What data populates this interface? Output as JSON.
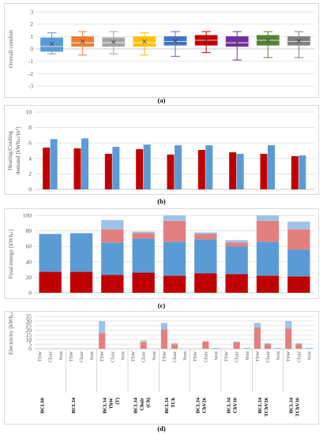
{
  "captions": [
    "(a)",
    "(b)",
    "(c)",
    "(d)"
  ],
  "chart_data": [
    {
      "type": "box",
      "ylabel": "Overall comfort",
      "ylim": [
        -3,
        3
      ],
      "yticks": [
        3,
        2,
        1,
        0,
        -1,
        -2,
        -3
      ],
      "grid": true,
      "categories": [
        "BCL00",
        "BCL34",
        "BCL34 ThW (T)",
        "BCL34 Chair (Ch)",
        "BCL34 TCh",
        "BCL34 ChV26",
        "BCL34 ChV30",
        "BCL34 TChV26",
        "BCL34 TChV30"
      ],
      "colors": [
        "#5b9bd5",
        "#ed7d31",
        "#a5a5a5",
        "#ffc000",
        "#4472c4",
        "#c00000",
        "#7030a0",
        "#548235",
        "#7f7f7f"
      ],
      "boxes": [
        {
          "min": -0.4,
          "q1": -0.2,
          "median": 0.2,
          "mean": 0.4,
          "q3": 0.9,
          "max": 1.3
        },
        {
          "min": -0.5,
          "q1": 0.2,
          "median": 0.5,
          "mean": 0.6,
          "q3": 1.0,
          "max": 1.4
        },
        {
          "min": -0.4,
          "q1": 0.2,
          "median": 0.5,
          "mean": 0.55,
          "q3": 0.9,
          "max": 1.4
        },
        {
          "min": -0.5,
          "q1": 0.2,
          "median": 0.5,
          "mean": 0.6,
          "q3": 1.0,
          "max": 1.3
        },
        {
          "min": -0.6,
          "q1": 0.3,
          "median": 0.6,
          "mean": 0.65,
          "q3": 1.0,
          "max": 1.4
        },
        {
          "min": -0.3,
          "q1": 0.3,
          "median": 0.7,
          "mean": 0.7,
          "q3": 1.1,
          "max": 1.4
        },
        {
          "min": -0.9,
          "q1": 0.2,
          "median": 0.5,
          "mean": 0.5,
          "q3": 1.0,
          "max": 1.4
        },
        {
          "min": -0.7,
          "q1": 0.3,
          "median": 0.7,
          "mean": 0.7,
          "q3": 1.1,
          "max": 1.4
        },
        {
          "min": -0.7,
          "q1": 0.3,
          "median": 0.6,
          "mean": 0.65,
          "q3": 1.0,
          "max": 1.4
        }
      ]
    },
    {
      "type": "bar",
      "ylabel": "Heating/Cooling demand [kWhₕₗ/m²]",
      "ylim": [
        0,
        10
      ],
      "yticks": [
        10,
        8,
        6,
        4,
        2,
        0
      ],
      "grid": true,
      "series": [
        {
          "name": "",
          "color": "#c00000",
          "values": [
            5.4,
            5.3,
            4.6,
            5.2,
            4.5,
            5.1,
            4.8,
            4.6,
            4.3
          ]
        },
        {
          "name": "",
          "color": "#5b9bd5",
          "values": [
            6.5,
            6.6,
            5.5,
            5.8,
            5.7,
            5.7,
            4.6,
            5.7,
            4.4
          ]
        }
      ]
    },
    {
      "type": "stacked-bar",
      "ylabel": "Final energy [kWhₑₗ]",
      "ylim": [
        0,
        100
      ],
      "yticks": [
        100,
        80,
        60,
        40,
        20,
        0
      ],
      "grid": true,
      "series": [
        {
          "name": "",
          "color": "#c00000",
          "values": [
            27,
            27,
            23,
            26,
            22,
            25,
            24,
            22,
            21
          ]
        },
        {
          "name": "",
          "color": "#5b9bd5",
          "values": [
            49,
            50,
            42,
            44,
            44,
            44,
            36,
            44,
            35
          ]
        },
        {
          "name": "",
          "color": "#e47f7f",
          "values": [
            0,
            0,
            17,
            7,
            27,
            7,
            5,
            27,
            26
          ]
        },
        {
          "name": "",
          "color": "#9dc3e6",
          "values": [
            0,
            0,
            12,
            2,
            7,
            2,
            3,
            7,
            10
          ]
        }
      ]
    },
    {
      "type": "stacked-bar",
      "ylabel": "Electricity [kWhₑₗ]",
      "ylim": [
        0,
        35
      ],
      "yticks": [
        35,
        30,
        25,
        20,
        15,
        10,
        5,
        0
      ],
      "grid": true,
      "subcategories": [
        "ThW",
        "Chair",
        "Vent"
      ],
      "group_labels": [
        [
          "BCL00"
        ],
        [
          "BCL34"
        ],
        [
          "BCL34",
          "ThW",
          "(T)"
        ],
        [
          "BCL34",
          "Chair",
          "(Ch)"
        ],
        [
          "BCL34",
          "TCh"
        ],
        [
          "BCL34",
          "ChV26"
        ],
        [
          "BCL34",
          "ChV30"
        ],
        [
          "BCL34",
          "TChV26"
        ],
        [
          "BCL34",
          "TChV30"
        ]
      ],
      "series": [
        {
          "name": "",
          "color": "#e47f7f",
          "values": [
            [
              0,
              0,
              0
            ],
            [
              0,
              0,
              0
            ],
            [
              17,
              0,
              0
            ],
            [
              0,
              7,
              0
            ],
            [
              21,
              5,
              0
            ],
            [
              0,
              8,
              0
            ],
            [
              0,
              7,
              0
            ],
            [
              23,
              5,
              0
            ],
            [
              22,
              5,
              0
            ]
          ]
        },
        {
          "name": "",
          "color": "#9dc3e6",
          "values": [
            [
              0,
              0,
              0
            ],
            [
              0,
              0,
              0
            ],
            [
              13,
              0,
              0
            ],
            [
              0,
              2,
              0
            ],
            [
              7,
              1,
              0
            ],
            [
              0,
              0,
              1
            ],
            [
              0,
              1,
              1
            ],
            [
              5,
              1,
              1
            ],
            [
              8,
              1,
              1
            ]
          ]
        }
      ]
    }
  ]
}
